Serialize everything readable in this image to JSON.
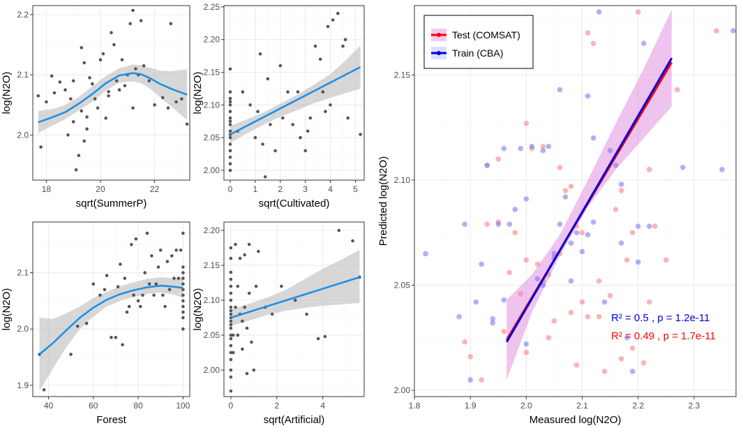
{
  "colors": {
    "grid_major": "#ebebeb",
    "grid_minor": "#f5f5f5",
    "point": "#555555",
    "smooth": "#1e90e6",
    "band": "#bdbdbd",
    "test": "#ff0000",
    "train": "#0000dd",
    "test_pt": "#ff8080",
    "train_pt": "#7b7bf2",
    "ci_fill": "#d97bd9"
  },
  "chart_data": [
    {
      "type": "scatter",
      "id": "summerp",
      "xlabel": "sqrt(SummerP)",
      "ylabel": "log(N2O)",
      "xlim": [
        17.5,
        23.3
      ],
      "ylim": [
        1.925,
        2.215
      ],
      "xticks": [
        18,
        20,
        22
      ],
      "xticklabels": [
        "18",
        "20",
        "22"
      ],
      "yticks": [
        2.0,
        2.1,
        2.2
      ],
      "yticklabels": [
        "2.0",
        "2.1",
        "2.2"
      ],
      "smooth": {
        "x": [
          17.7,
          18.2,
          18.7,
          19.2,
          19.7,
          20.2,
          20.7,
          21.2,
          21.5,
          21.8,
          22.2,
          22.6,
          23.2
        ],
        "y": [
          2.021,
          2.029,
          2.038,
          2.052,
          2.068,
          2.086,
          2.099,
          2.103,
          2.101,
          2.095,
          2.085,
          2.077,
          2.067
        ],
        "lo": [
          2.003,
          2.015,
          2.026,
          2.041,
          2.055,
          2.074,
          2.087,
          2.089,
          2.086,
          2.078,
          2.063,
          2.048,
          2.025
        ],
        "hi": [
          2.04,
          2.043,
          2.05,
          2.063,
          2.081,
          2.098,
          2.111,
          2.117,
          2.116,
          2.112,
          2.107,
          2.106,
          2.109
        ]
      },
      "points": {
        "x": [
          17.7,
          17.8,
          18.0,
          18.3,
          18.5,
          18.7,
          18.9,
          19.0,
          19.1,
          19.2,
          19.3,
          19.3,
          19.4,
          19.5,
          19.5,
          19.6,
          19.7,
          19.8,
          19.9,
          20.0,
          20.1,
          20.2,
          20.3,
          20.4,
          20.5,
          20.6,
          20.7,
          20.8,
          20.9,
          21.0,
          21.1,
          21.2,
          21.3,
          21.4,
          21.5,
          21.6,
          21.8,
          22.0,
          22.3,
          22.6,
          22.8,
          23.0,
          23.2,
          19.0,
          19.4,
          20.3,
          21.2,
          22.5,
          18.2,
          18.8
        ],
        "y": [
          2.065,
          1.98,
          2.055,
          2.07,
          2.088,
          2.075,
          2.06,
          2.022,
          1.942,
          1.966,
          2.04,
          2.145,
          2.12,
          2.03,
          2.01,
          2.095,
          2.085,
          2.06,
          2.045,
          2.125,
          2.135,
          2.028,
          2.072,
          2.17,
          2.15,
          2.09,
          2.075,
          2.125,
          2.082,
          2.1,
          2.185,
          2.207,
          2.11,
          2.1,
          2.19,
          2.115,
          2.09,
          2.05,
          2.062,
          2.185,
          2.055,
          2.06,
          2.018,
          2.09,
          1.99,
          2.065,
          2.045,
          2.045,
          2.098,
          2.0
        ]
      }
    },
    {
      "type": "scatter",
      "id": "cultivated",
      "xlabel": "sqrt(Cultivated)",
      "ylabel": "log(N2O)",
      "xlim": [
        -0.25,
        5.35
      ],
      "ylim": [
        1.985,
        2.252
      ],
      "xticks": [
        0,
        1,
        2,
        3,
        4,
        5
      ],
      "xticklabels": [
        "0",
        "1",
        "2",
        "3",
        "4",
        "5"
      ],
      "yticks": [
        2.0,
        2.05,
        2.1,
        2.15,
        2.2,
        2.25
      ],
      "yticklabels": [
        "2.00",
        "2.05",
        "2.10",
        "2.15",
        "2.20",
        "2.25"
      ],
      "smooth": {
        "x": [
          0,
          5.2
        ],
        "y": [
          2.055,
          2.158
        ]
      },
      "band": {
        "x": [
          0,
          0.6,
          1.3,
          2.0,
          2.6,
          3.3,
          4.0,
          4.6,
          5.2
        ],
        "lo": [
          2.042,
          2.055,
          2.069,
          2.082,
          2.091,
          2.102,
          2.111,
          2.118,
          2.125
        ],
        "hi": [
          2.068,
          2.077,
          2.088,
          2.102,
          2.114,
          2.13,
          2.147,
          2.168,
          2.191
        ]
      },
      "points": {
        "x": [
          0,
          0,
          0,
          0,
          0,
          0,
          0,
          0,
          0,
          0,
          0,
          0,
          0,
          0,
          0,
          0,
          0,
          0,
          0.3,
          0.5,
          0.8,
          1.0,
          1.1,
          1.2,
          1.3,
          1.5,
          1.6,
          1.8,
          2.0,
          2.1,
          2.3,
          2.5,
          2.7,
          3.0,
          3.1,
          3.2,
          3.4,
          3.6,
          3.7,
          3.8,
          3.9,
          4.0,
          4.1,
          4.3,
          4.5,
          4.6,
          4.7,
          5.2,
          1.4,
          2.8
        ],
        "y": [
          2.0,
          2.01,
          2.02,
          2.03,
          2.04,
          2.05,
          2.055,
          2.06,
          2.07,
          2.075,
          2.08,
          2.09,
          2.1,
          2.105,
          2.11,
          2.12,
          2.155,
          2.03,
          2.06,
          2.12,
          2.1,
          2.05,
          2.09,
          2.178,
          2.04,
          2.14,
          2.07,
          2.03,
          2.16,
          2.08,
          2.12,
          2.07,
          2.12,
          2.03,
          2.06,
          2.08,
          2.19,
          2.17,
          2.12,
          2.09,
          2.22,
          2.1,
          2.23,
          2.24,
          2.19,
          2.2,
          2.08,
          2.055,
          1.99,
          2.05
        ]
      }
    },
    {
      "type": "scatter",
      "id": "forest",
      "xlabel": "Forest",
      "ylabel": "log(N2O)",
      "xlim": [
        33,
        103
      ],
      "ylim": [
        1.88,
        2.19
      ],
      "xticks": [
        40,
        60,
        80,
        100
      ],
      "xticklabels": [
        "40",
        "60",
        "80",
        "100"
      ],
      "yticks": [
        1.9,
        2.0,
        2.1
      ],
      "yticklabels": [
        "1.9",
        "2.0",
        "2.1"
      ],
      "smooth": {
        "x": [
          36,
          42,
          48,
          54,
          60,
          66,
          72,
          78,
          84,
          90,
          96,
          100
        ],
        "y": [
          1.955,
          1.975,
          1.998,
          2.02,
          2.038,
          2.052,
          2.062,
          2.069,
          2.074,
          2.077,
          2.075,
          2.073
        ],
        "lo": [
          1.89,
          1.93,
          1.968,
          2.0,
          2.022,
          2.04,
          2.05,
          2.057,
          2.062,
          2.065,
          2.061,
          2.055
        ],
        "hi": [
          2.02,
          2.018,
          2.028,
          2.04,
          2.055,
          2.066,
          2.076,
          2.083,
          2.089,
          2.092,
          2.09,
          2.092
        ]
      },
      "points": {
        "x": [
          36,
          38,
          50,
          53,
          57,
          60,
          63,
          65,
          66,
          68,
          70,
          71,
          72,
          73,
          74,
          75,
          76,
          77,
          78,
          79,
          80,
          81,
          82,
          83,
          84,
          85,
          86,
          87,
          88,
          89,
          90,
          91,
          92,
          93,
          94,
          95,
          96,
          97,
          98,
          99,
          100,
          100,
          100,
          100,
          100,
          100,
          100,
          100,
          100,
          100,
          100,
          100
        ],
        "y": [
          1.955,
          1.892,
          1.955,
          2.005,
          2.01,
          2.08,
          2.06,
          2.07,
          2.095,
          1.985,
          1.985,
          2.075,
          2.115,
          1.972,
          2.09,
          2.03,
          2.04,
          2.15,
          2.06,
          2.16,
          2.05,
          2.04,
          2.06,
          2.1,
          2.17,
          2.08,
          2.13,
          2.06,
          2.08,
          2.11,
          2.14,
          2.06,
          2.04,
          2.12,
          2.07,
          2.13,
          2.09,
          2.14,
          2.09,
          2.14,
          2.0,
          2.02,
          2.03,
          2.04,
          2.05,
          2.06,
          2.07,
          2.08,
          2.09,
          2.1,
          2.11,
          2.17
        ]
      }
    },
    {
      "type": "scatter",
      "id": "artificial",
      "xlabel": "sqrt(Artificial)",
      "ylabel": "log(N2O)",
      "xlim": [
        -0.3,
        5.8
      ],
      "ylim": [
        1.962,
        2.212
      ],
      "xticks": [
        0,
        2,
        4
      ],
      "xticklabels": [
        "0",
        "2",
        "4"
      ],
      "yticks": [
        2.0,
        2.05,
        2.1,
        2.15,
        2.2
      ],
      "yticklabels": [
        "2.00",
        "2.05",
        "2.10",
        "2.15",
        "2.20"
      ],
      "smooth": {
        "x": [
          0,
          5.6
        ],
        "y": [
          2.075,
          2.133
        ]
      },
      "band": {
        "x": [
          0,
          0.8,
          1.6,
          2.4,
          3.2,
          4.0,
          4.8,
          5.6
        ],
        "lo": [
          2.063,
          2.071,
          2.079,
          2.085,
          2.089,
          2.092,
          2.094,
          2.096
        ],
        "hi": [
          2.087,
          2.095,
          2.104,
          2.115,
          2.13,
          2.145,
          2.158,
          2.172
        ]
      },
      "points": {
        "x": [
          0,
          0,
          0,
          0,
          0,
          0,
          0,
          0,
          0,
          0,
          0,
          0,
          0,
          0,
          0,
          0,
          0,
          0,
          0,
          0,
          0,
          0,
          0.1,
          0.2,
          0.2,
          0.3,
          0.3,
          0.4,
          0.4,
          0.5,
          0.5,
          0.6,
          0.6,
          0.7,
          0.8,
          0.8,
          0.9,
          1.0,
          1.1,
          1.2,
          1.5,
          1.8,
          2.2,
          2.8,
          3.3,
          3.8,
          4.1,
          4.7,
          5.3,
          5.6,
          0.1,
          0.7
        ],
        "y": [
          1.97,
          1.99,
          2.0,
          2.015,
          2.025,
          2.035,
          2.045,
          2.05,
          2.06,
          2.065,
          2.07,
          2.075,
          2.08,
          2.085,
          2.09,
          2.1,
          2.11,
          2.12,
          2.13,
          2.14,
          2.16,
          2.175,
          2.025,
          2.09,
          2.18,
          2.05,
          2.12,
          2.16,
          2.08,
          2.07,
          2.03,
          2.165,
          2.09,
          2.06,
          2.18,
          2.11,
          2.04,
          2.0,
          2.12,
          2.17,
          2.09,
          2.08,
          2.12,
          2.1,
          2.08,
          2.045,
          2.048,
          2.2,
          2.185,
          2.133,
          2.05,
          1.995
        ]
      }
    },
    {
      "type": "scatter",
      "id": "predicted",
      "xlabel": "Measured log(N2O)",
      "ylabel": "Predicted log(N2O)",
      "xlim": [
        1.8,
        2.375
      ],
      "ylim": [
        1.997,
        2.183
      ],
      "xticks": [
        1.8,
        1.9,
        2.0,
        2.1,
        2.2,
        2.3
      ],
      "xticklabels": [
        "1.8",
        "1.9",
        "2.0",
        "2.1",
        "2.2",
        "2.3"
      ],
      "yticks": [
        2.0,
        2.05,
        2.1,
        2.15
      ],
      "yticklabels": [
        "2.00",
        "2.05",
        "2.10",
        "2.15"
      ],
      "legend": {
        "position": "top-left",
        "items": [
          {
            "name": "Test (COMSAT)",
            "key": "test"
          },
          {
            "name": "Train (CBA)",
            "key": "train"
          }
        ]
      },
      "fit_lines": [
        {
          "name": "Test (COMSAT)",
          "key": "test",
          "x": [
            1.965,
            2.26
          ],
          "y": [
            2.024,
            2.156
          ]
        },
        {
          "name": "Train (CBA)",
          "key": "train",
          "x": [
            1.965,
            2.26
          ],
          "y": [
            2.023,
            2.158
          ]
        }
      ],
      "ci_band": {
        "x": [
          1.965,
          2.01,
          2.06,
          2.11,
          2.16,
          2.21,
          2.26
        ],
        "lo": [
          2.005,
          2.037,
          2.064,
          2.087,
          2.105,
          2.12,
          2.135
        ],
        "hi": [
          2.043,
          2.055,
          2.074,
          2.1,
          2.127,
          2.153,
          2.181
        ]
      },
      "annotations": [
        {
          "key": "train",
          "text": "R² = 0.5 , p = 1.2e-11"
        },
        {
          "key": "test",
          "text": "R² = 0.49 , p = 1.7e-11"
        }
      ],
      "series": [
        {
          "name": "Test (COMSAT)",
          "key": "test",
          "x": [
            1.89,
            1.9,
            1.92,
            1.93,
            1.95,
            1.96,
            1.97,
            1.98,
            1.99,
            2.0,
            2.01,
            2.02,
            2.03,
            2.04,
            2.05,
            2.06,
            2.07,
            2.08,
            2.09,
            2.1,
            2.11,
            2.12,
            2.13,
            2.14,
            2.15,
            2.16,
            2.17,
            2.18,
            2.19,
            2.2,
            2.21,
            2.22,
            2.23,
            2.25,
            2.27,
            2.34,
            1.93,
            2.0,
            2.06,
            2.1,
            2.13,
            2.17,
            2.04,
            2.08,
            1.95,
            2.19,
            2.11,
            2.0,
            2.03,
            2.09,
            2.22
          ],
          "y": [
            2.023,
            2.016,
            2.005,
            2.107,
            2.11,
            2.028,
            2.056,
            2.075,
            2.046,
            2.127,
            2.115,
            2.06,
            2.116,
            2.055,
            2.033,
            2.106,
            2.095,
            2.037,
            2.078,
            2.075,
            2.17,
            2.165,
            2.052,
            2.009,
            2.045,
            2.086,
            2.015,
            2.062,
            2.075,
            2.18,
            2.013,
            2.042,
            2.078,
            2.062,
            2.143,
            2.171,
            2.079,
            2.062,
            2.065,
            2.042,
            2.035,
            2.095,
            2.025,
            2.097,
            2.08,
            2.02,
            2.035,
            2.018,
            2.052,
            2.012,
            2.105
          ]
        },
        {
          "name": "Train (CBA)",
          "key": "train",
          "x": [
            1.82,
            1.88,
            1.89,
            1.9,
            1.91,
            1.92,
            1.93,
            1.94,
            1.95,
            1.96,
            1.97,
            1.98,
            1.99,
            2.0,
            2.01,
            2.02,
            2.03,
            2.04,
            2.05,
            2.06,
            2.07,
            2.08,
            2.09,
            2.1,
            2.11,
            2.12,
            2.13,
            2.14,
            2.15,
            2.16,
            2.17,
            2.18,
            2.19,
            2.2,
            2.21,
            2.22,
            2.28,
            2.35,
            2.37,
            1.94,
            1.96,
            2.03,
            2.05,
            2.08,
            2.12,
            2.17,
            2.2,
            2.11,
            2.06,
            2.0
          ],
          "y": [
            2.065,
            2.035,
            2.079,
            2.005,
            2.042,
            2.06,
            2.107,
            2.034,
            2.079,
            2.043,
            2.079,
            2.086,
            2.115,
            2.091,
            2.116,
            2.053,
            2.114,
            2.116,
            2.065,
            2.143,
            2.092,
            2.052,
            2.075,
            2.066,
            2.14,
            2.08,
            2.18,
            2.042,
            2.114,
            2.107,
            2.098,
            2.025,
            2.009,
            2.061,
            2.165,
            2.078,
            2.106,
            2.105,
            2.171,
            2.032,
            2.115,
            2.05,
            2.063,
            2.07,
            2.12,
            2.07,
            2.078,
            2.074,
            2.079,
            2.022
          ]
        }
      ]
    }
  ]
}
